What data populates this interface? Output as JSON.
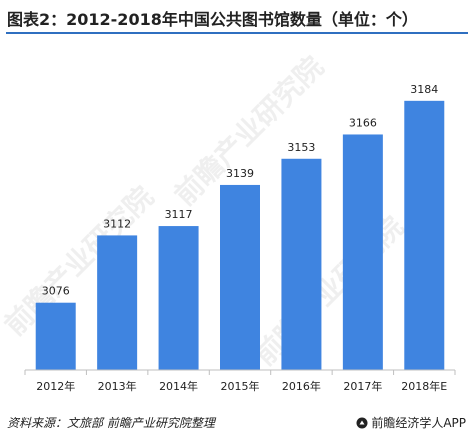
{
  "title": "图表2：2012-2018年中国公共图书馆数量（单位：个）",
  "source": "资料来源：文旅部 前瞻产业研究院整理",
  "brand": "前瞻经济学人APP",
  "watermark": "前瞻产业研究院",
  "colors": {
    "bar": "#3f84e0",
    "title_rule": "#2f6fc0",
    "axis": "#bfbfbf",
    "text": "#222222"
  },
  "chart_data": {
    "type": "bar",
    "title": "图表2：2012-2018年中国公共图书馆数量（单位：个）",
    "categories": [
      "2012年",
      "2013年",
      "2014年",
      "2015年",
      "2016年",
      "2017年",
      "2018年E"
    ],
    "values": [
      3076,
      3112,
      3117,
      3139,
      3153,
      3166,
      3184
    ],
    "data_labels": [
      "3076",
      "3112",
      "3117",
      "3139",
      "3153",
      "3166",
      "3184"
    ],
    "xlabel": "",
    "ylabel": "",
    "ylim": [
      3040,
      3193
    ],
    "grid": false,
    "legend": "none"
  }
}
